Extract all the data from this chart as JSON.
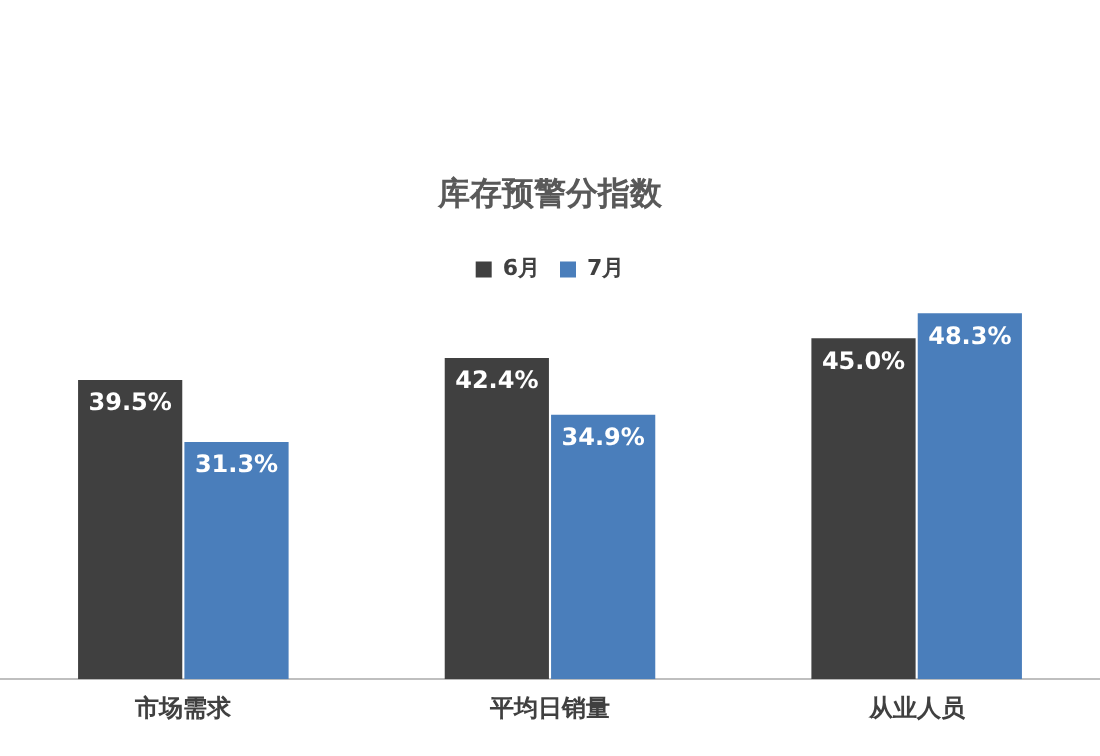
{
  "chart_data": {
    "type": "bar",
    "title": "库存预警分指数",
    "categories": [
      "市场需求",
      "平均日销量",
      "从业人员"
    ],
    "series": [
      {
        "name": "6月",
        "color": "#404040",
        "values": [
          39.5,
          42.4,
          45.0
        ],
        "value_labels": [
          "39.5%",
          "42.4%",
          "45.0%"
        ]
      },
      {
        "name": "7月",
        "color": "#4a7ebb",
        "values": [
          31.3,
          34.9,
          48.3
        ],
        "value_labels": [
          "31.3%",
          "34.9%",
          "48.3%"
        ]
      }
    ],
    "legend": "top"
  }
}
